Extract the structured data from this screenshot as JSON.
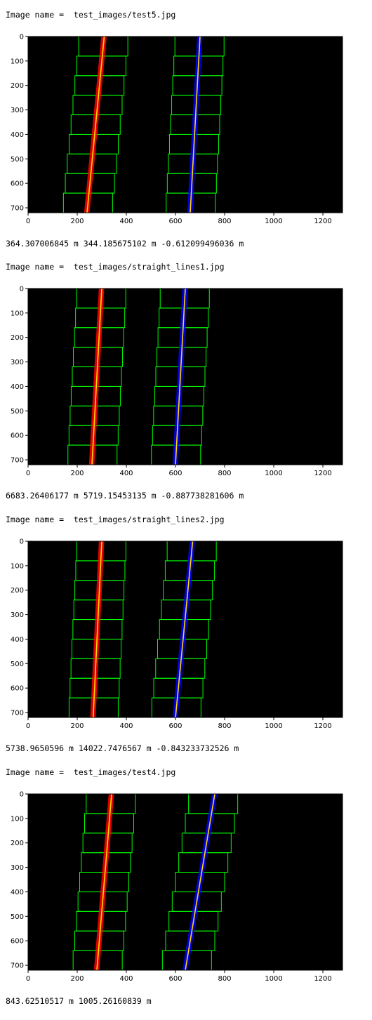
{
  "items": [
    {
      "image_name_label": "Image name =  test_images/test5.jpg",
      "result_line": "364.307006845 m 344.185675102 m -0.612099496036 m",
      "left_fit": {
        "top_x": 310,
        "bottom_x": 240
      },
      "right_fit": {
        "top_x": 700,
        "bottom_x": 660
      }
    },
    {
      "image_name_label": "Image name =  test_images/straight_lines1.jpg",
      "result_line": "6683.26406177 m 5719.15453135 m -0.887738281606 m",
      "left_fit": {
        "top_x": 300,
        "bottom_x": 260
      },
      "right_fit": {
        "top_x": 640,
        "bottom_x": 600
      }
    },
    {
      "image_name_label": "Image name =  test_images/straight_lines2.jpg",
      "result_line": "5738.9650596 m 14022.7476567 m -0.843233732526 m",
      "left_fit": {
        "top_x": 300,
        "bottom_x": 265
      },
      "right_fit": {
        "top_x": 670,
        "bottom_x": 600
      }
    },
    {
      "image_name_label": "Image name =  test_images/test4.jpg",
      "result_line": "843.62510517 m 1005.26160839 m",
      "left_fit": {
        "top_x": 340,
        "bottom_x": 280
      },
      "right_fit": {
        "top_x": 760,
        "bottom_x": 640
      }
    }
  ],
  "axes": {
    "xticks": [
      0,
      200,
      400,
      600,
      800,
      1000,
      1200
    ],
    "yticks": [
      0,
      100,
      200,
      300,
      400,
      500,
      600,
      700
    ],
    "xlim": [
      0,
      1280
    ],
    "ylim": [
      0,
      720
    ]
  },
  "colors": {
    "lane_left": "#ff0000",
    "lane_right": "#0000ff",
    "fit_line": "#ffd700",
    "window": "#00ff00",
    "background": "#000000",
    "edges": "#ffffff"
  }
}
